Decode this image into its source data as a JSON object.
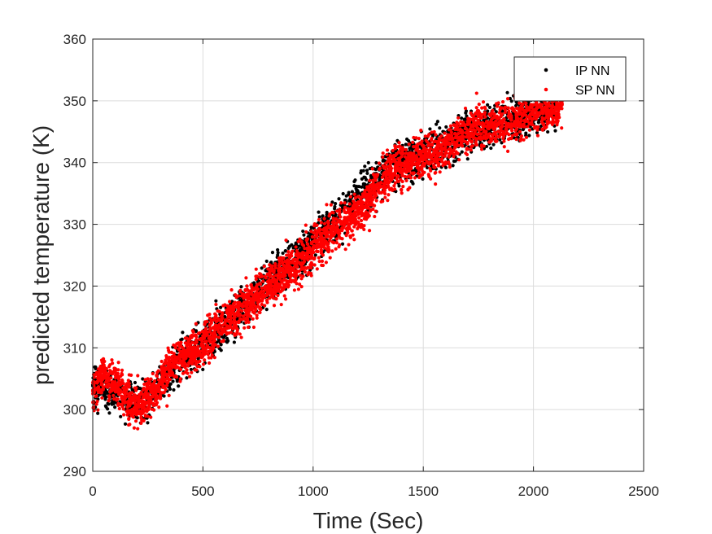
{
  "chart_data": {
    "type": "scatter",
    "xlabel": "Time (Sec)",
    "ylabel": "predicted temperature (K)",
    "xlim": [
      0,
      2500
    ],
    "ylim": [
      290,
      360
    ],
    "xticks": [
      0,
      500,
      1000,
      1500,
      2000,
      2500
    ],
    "yticks": [
      290,
      300,
      310,
      320,
      330,
      340,
      350,
      360
    ],
    "xtick_labels": [
      "0",
      "500",
      "1000",
      "1500",
      "2000",
      "2500"
    ],
    "ytick_labels": [
      "290",
      "300",
      "310",
      "320",
      "330",
      "340",
      "350",
      "360"
    ],
    "grid": true,
    "legend_position": "top-right",
    "series": [
      {
        "name": "IP NN",
        "color": "#000000",
        "x": [
          0,
          100,
          200,
          300,
          400,
          500,
          600,
          700,
          800,
          900,
          1000,
          1100,
          1200,
          1300,
          1400,
          1500,
          1600,
          1700,
          1800,
          1900,
          2000,
          2100
        ],
        "y": [
          304,
          303,
          301,
          304,
          308,
          311,
          314,
          317,
          321,
          324,
          327,
          331,
          334,
          338,
          340,
          341,
          343,
          345,
          346,
          347,
          348,
          349
        ]
      },
      {
        "name": "SP NN",
        "color": "#ff0000",
        "x": [
          0,
          25,
          50,
          75,
          100,
          125,
          150,
          175,
          200,
          225,
          250,
          275,
          300,
          325,
          350,
          375,
          400,
          425,
          450,
          475,
          500,
          550,
          600,
          650,
          700,
          750,
          800,
          850,
          900,
          950,
          1000,
          1050,
          1100,
          1150,
          1200,
          1250,
          1300,
          1350,
          1400,
          1450,
          1500,
          1550,
          1600,
          1650,
          1700,
          1750,
          1800,
          1850,
          1900,
          1950,
          2000,
          2050,
          2100,
          2130
        ],
        "y": [
          303,
          305,
          306,
          305,
          304,
          303,
          302,
          301,
          300.5,
          301,
          302,
          302.5,
          303.5,
          305,
          307,
          308,
          308.5,
          309,
          309,
          309.5,
          310.5,
          312.5,
          314,
          315.5,
          317,
          318.5,
          320,
          321.5,
          323,
          324.5,
          326,
          327.5,
          329,
          330.5,
          332,
          334,
          336.5,
          338.5,
          339.5,
          340.5,
          341,
          341.5,
          342.5,
          344,
          345,
          345.5,
          346,
          346.5,
          347,
          347.5,
          348,
          348.5,
          349,
          349.5
        ]
      }
    ]
  }
}
